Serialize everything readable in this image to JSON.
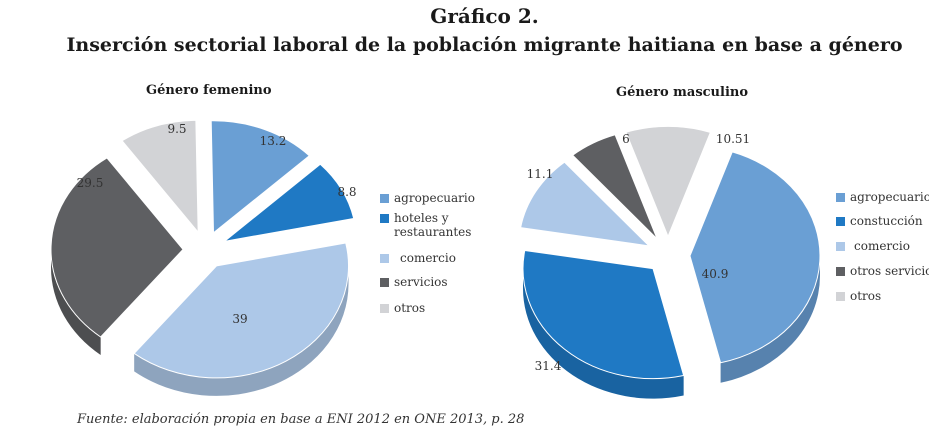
{
  "header": {
    "title": "Gráfico 2.",
    "subtitle": "Inserción sectorial laboral de la población migrante haitiana en base a género"
  },
  "chart_data": [
    {
      "type": "pie",
      "title": "Género femenino",
      "categories": [
        "agropecuario",
        "hoteles y restaurantes",
        "comercio",
        "servicios",
        "otros"
      ],
      "values": [
        13.2,
        8.8,
        39,
        29.5,
        9.5
      ],
      "data_labels": [
        "13.2",
        "8.8",
        "39",
        "29.5",
        "9.5"
      ],
      "colors": [
        "#6a9fd4",
        "#1f79c4",
        "#adc8e8",
        "#5e5f62",
        "#d2d3d6"
      ],
      "legend_labels": [
        "agropecuario",
        "hoteles y",
        "restaurantes",
        "comercio",
        "servicios",
        "otros"
      ],
      "legend_placement": "right"
    },
    {
      "type": "pie",
      "title": "Género masculino",
      "categories": [
        "agropecuario",
        "constucción",
        "comercio",
        "otros servicios",
        "otros"
      ],
      "values": [
        40.9,
        31.4,
        11.1,
        6,
        10.51
      ],
      "data_labels": [
        "40.9",
        "31.4",
        "11.1",
        "6",
        "10.51"
      ],
      "colors": [
        "#6a9fd4",
        "#1f79c4",
        "#adc8e8",
        "#5e5f62",
        "#d2d3d6"
      ],
      "legend_labels": [
        "agropecuario",
        "constucción",
        "comercio",
        "otros servicios",
        "otros"
      ],
      "legend_placement": "right"
    }
  ],
  "source": "Fuente: elaboración propia en base a ENI 2012 en ONE 2013, p. 28"
}
